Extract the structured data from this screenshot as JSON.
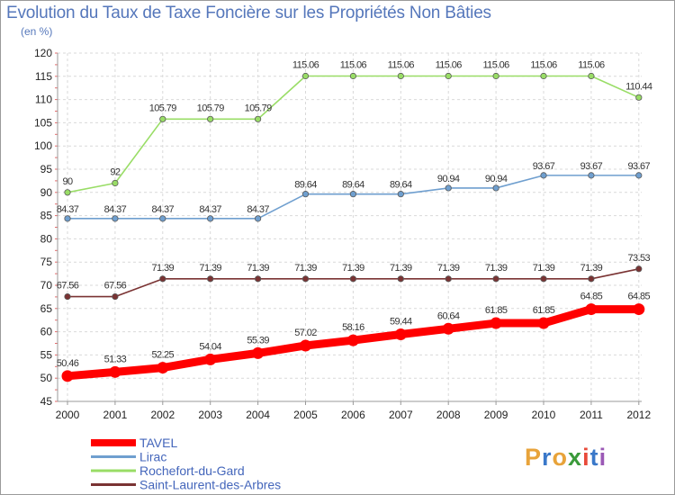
{
  "header": {
    "title": "Evolution du Taux de Taxe Foncière sur les Propriétés Non Bâties",
    "unit": "(en %)"
  },
  "logo": {
    "text": "Proxiti",
    "colors": [
      "#e8a33a",
      "#3a78c9",
      "#e8a33a",
      "#3a9a3a",
      "#e84a3a",
      "#3a78c9",
      "#9b59b6"
    ]
  },
  "chart_data": {
    "type": "line",
    "title": "Evolution du Taux de Taxe Foncière sur les Propriétés Non Bâties",
    "ylabel": "(en %)",
    "xlabel": "",
    "ylim": [
      45,
      120
    ],
    "yticks": [
      45,
      50,
      55,
      60,
      65,
      70,
      75,
      80,
      85,
      90,
      95,
      100,
      105,
      110,
      115,
      120
    ],
    "x": [
      "2000",
      "2001",
      "2002",
      "2003",
      "2004",
      "2005",
      "2006",
      "2007",
      "2008",
      "2009",
      "2010",
      "2011",
      "2012"
    ],
    "legend_position": "bottom-left",
    "series": [
      {
        "name": "TAVEL",
        "color": "#ff0000",
        "values": [
          50.46,
          51.33,
          52.25,
          54.04,
          55.39,
          57.02,
          58.16,
          59.44,
          60.64,
          61.85,
          61.85,
          64.85,
          64.85
        ],
        "labels": [
          "50.46",
          "51.33",
          "52.25",
          "54.04",
          "55.39",
          "57.02",
          "58.16",
          "59.44",
          "60.64",
          "61.85",
          "61.85",
          "64.85",
          "64.85"
        ]
      },
      {
        "name": "Lirac",
        "color": "#6f9fcf",
        "values": [
          84.37,
          84.37,
          84.37,
          84.37,
          84.37,
          89.64,
          89.64,
          89.64,
          90.94,
          90.94,
          93.67,
          93.67,
          93.67
        ],
        "labels": [
          "84.37",
          "84.37",
          "84.37",
          "84.37",
          "84.37",
          "89.64",
          "89.64",
          "89.64",
          "90.94",
          "90.94",
          "93.67",
          "93.67",
          "93.67"
        ]
      },
      {
        "name": "Rochefort-du-Gard",
        "color": "#99dd66",
        "values": [
          90,
          92,
          105.79,
          105.79,
          105.79,
          115.06,
          115.06,
          115.06,
          115.06,
          115.06,
          115.06,
          115.06,
          110.44
        ],
        "labels": [
          "90",
          "92",
          "105.79",
          "105.79",
          "105.79",
          "115.06",
          "115.06",
          "115.06",
          "115.06",
          "115.06",
          "115.06",
          "115.06",
          "110.44"
        ]
      },
      {
        "name": "Saint-Laurent-des-Arbres",
        "color": "#7a3333",
        "values": [
          67.56,
          67.56,
          71.39,
          71.39,
          71.39,
          71.39,
          71.39,
          71.39,
          71.39,
          71.39,
          71.39,
          71.39,
          73.53
        ],
        "labels": [
          "67.56",
          "67.56",
          "71.39",
          "71.39",
          "71.39",
          "71.39",
          "71.39",
          "71.39",
          "71.39",
          "71.39",
          "71.39",
          "71.39",
          "73.53"
        ]
      }
    ]
  }
}
